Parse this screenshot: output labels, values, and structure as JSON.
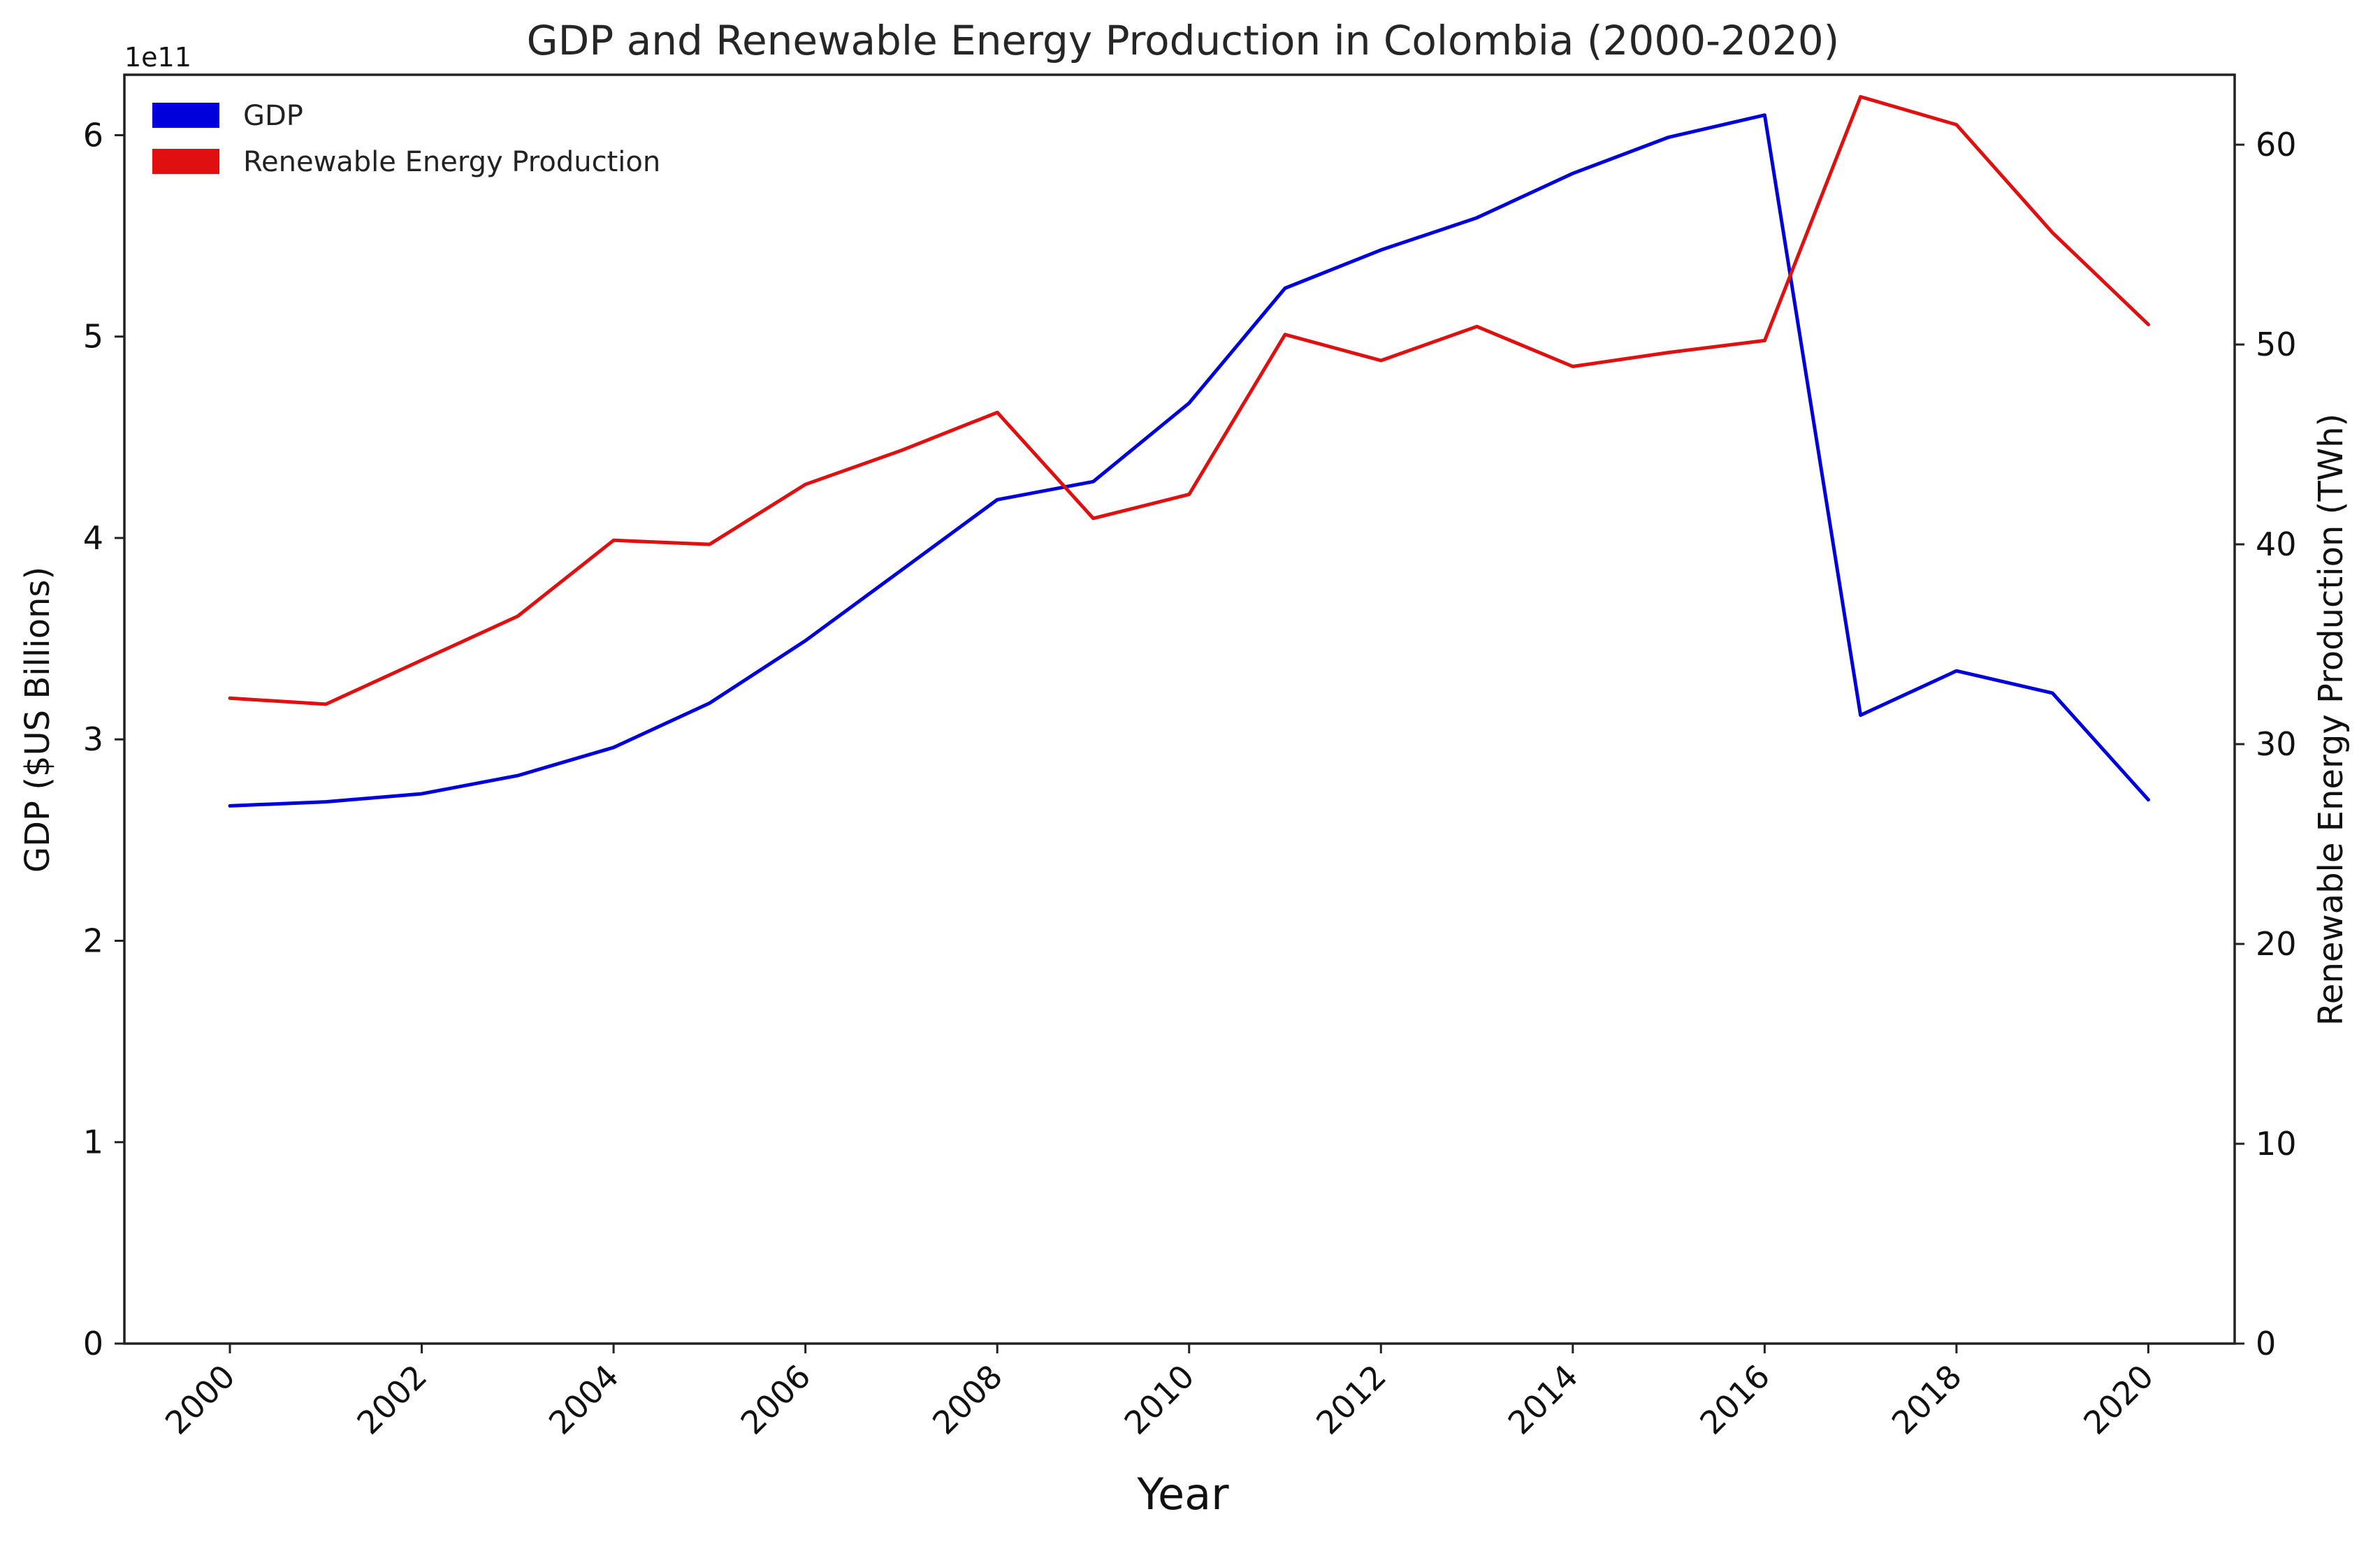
{
  "chart_data": {
    "type": "line",
    "title": "GDP and Renewable Energy Production in Colombia (2000-2020)",
    "xlabel": "Year",
    "ylabel_left": "GDP ($US Billions)",
    "ylabel_right": "Renewable Energy Production (TWh)",
    "left_axis_offset_label": "1e11",
    "x": [
      2000,
      2001,
      2002,
      2003,
      2004,
      2005,
      2006,
      2007,
      2008,
      2009,
      2010,
      2011,
      2012,
      2013,
      2014,
      2015,
      2016,
      2017,
      2018,
      2019,
      2020
    ],
    "x_ticks": [
      "2000",
      "2002",
      "2004",
      "2006",
      "2008",
      "2010",
      "2012",
      "2014",
      "2016",
      "2018",
      "2020"
    ],
    "xlim": [
      1998.9,
      2020.9
    ],
    "ylim_left": [
      0,
      6.3
    ],
    "yticks_left": [
      "0",
      "1",
      "2",
      "3",
      "4",
      "5",
      "6"
    ],
    "ylim_right": [
      0,
      63.5
    ],
    "yticks_right": [
      "0",
      "10",
      "20",
      "30",
      "40",
      "50",
      "60"
    ],
    "series": [
      {
        "name": "GDP",
        "axis": "left",
        "color": "#0000dd",
        "values": [
          2.67,
          2.69,
          2.73,
          2.82,
          2.96,
          3.18,
          3.49,
          3.84,
          4.19,
          4.28,
          4.67,
          5.24,
          5.43,
          5.59,
          5.81,
          5.99,
          6.1,
          3.12,
          3.34,
          3.23,
          2.7
        ]
      },
      {
        "name": "Renewable Energy Production",
        "axis": "right",
        "color": "#e01010",
        "values": [
          32.3,
          32.0,
          34.2,
          36.4,
          40.2,
          40.0,
          43.0,
          44.7,
          46.6,
          41.3,
          42.5,
          50.5,
          49.2,
          50.9,
          48.9,
          49.6,
          50.2,
          62.4,
          61.0,
          55.6,
          51.0
        ]
      }
    ],
    "legend_position": "top-left",
    "grid": false
  }
}
